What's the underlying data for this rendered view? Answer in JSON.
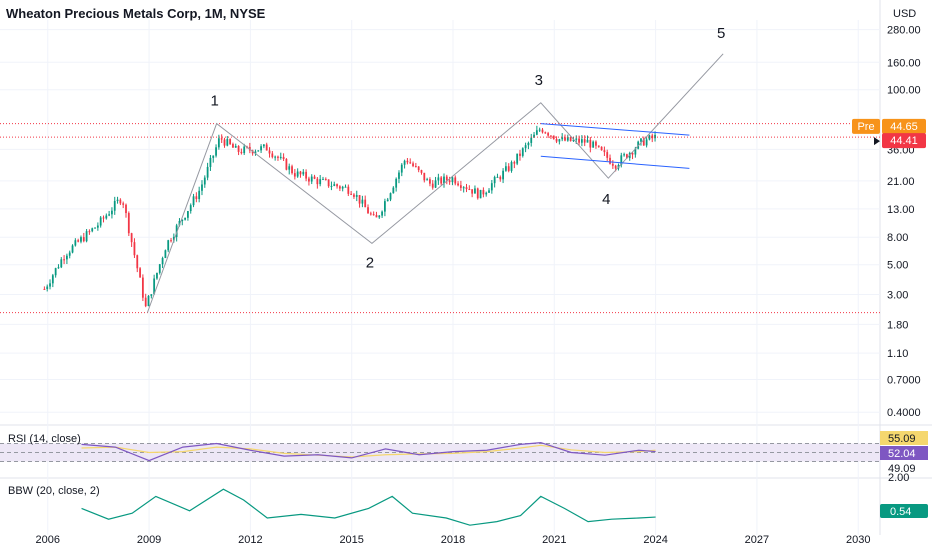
{
  "header": {
    "title": "Wheaton Precious Metals Corp, 1M, NYSE",
    "currency": "USD"
  },
  "price_axis": {
    "ticks": [
      "280.00",
      "160.00",
      "100.00",
      "36.00",
      "21.00",
      "13.00",
      "8.00",
      "5.00",
      "3.00",
      "1.80",
      "1.10",
      "0.7000",
      "0.4000"
    ],
    "pre_label": "Pre",
    "pre_value": "44.65",
    "last_value": "44.41",
    "colors": {
      "pre": "#f7931a",
      "last": "#f23645",
      "up": "#089981",
      "down": "#f23645",
      "wave": "#9598a1",
      "channel": "#2962ff"
    }
  },
  "time_axis": {
    "ticks": [
      "2006",
      "2009",
      "2012",
      "2015",
      "2018",
      "2021",
      "2024",
      "2027",
      "2030"
    ]
  },
  "rsi": {
    "label": "RSI (14, close)",
    "ticks": [
      "55.09",
      "52.04",
      "49.09"
    ],
    "colors": {
      "line": "#7e57c2",
      "ma": "#f5d76e",
      "band": "#ede7f6",
      "badge_ma": "#f5d76e",
      "badge_rsi": "#7e57c2"
    }
  },
  "bbw": {
    "label": "BBW (20, close, 2)",
    "ticks": [
      "2.00"
    ],
    "value": "0.54",
    "color": "#089981"
  },
  "chart_data": [
    {
      "type": "candlestick",
      "title": "Wheaton Precious Metals Corp, 1M, NYSE",
      "y_scale": "log",
      "currency": "USD",
      "x_range": [
        2005,
        2031
      ],
      "y_range": [
        0.35,
        330
      ],
      "series": [
        {
          "name": "price",
          "x": [
            2005.9,
            2006.5,
            2007.5,
            2008.2,
            2008.9,
            2009.5,
            2010.5,
            2011.1,
            2011.6,
            2012.5,
            2013.3,
            2014.0,
            2015.0,
            2015.7,
            2016.6,
            2017.3,
            2018.0,
            2018.8,
            2019.7,
            2020.6,
            2021.2,
            2022.0,
            2022.8,
            2023.6,
            2024.0
          ],
          "values": [
            3.3,
            6.0,
            10.0,
            16.0,
            2.4,
            7.0,
            18.0,
            44.0,
            35.0,
            37.0,
            24.0,
            21.0,
            18.0,
            10.5,
            31.0,
            20.0,
            22.0,
            16.5,
            27.0,
            52.0,
            42.0,
            41.0,
            28.0,
            41.0,
            44.41
          ]
        }
      ],
      "annotations": {
        "wave_labels": [
          "1",
          "2",
          "3",
          "4",
          "5"
        ],
        "wave_points": [
          {
            "label": "start",
            "x": 2008.95,
            "y": 2.2
          },
          {
            "label": "1",
            "x": 2011.0,
            "y": 56
          },
          {
            "label": "2",
            "x": 2015.6,
            "y": 7.2
          },
          {
            "label": "3",
            "x": 2020.6,
            "y": 80
          },
          {
            "label": "4",
            "x": 2022.6,
            "y": 22
          },
          {
            "label": "5",
            "x": 2026.0,
            "y": 185
          }
        ],
        "horizontal_levels": [
          56,
          2.2
        ],
        "channel_upper": [
          {
            "x": 2020.6,
            "y": 56
          },
          {
            "x": 2025.0,
            "y": 46
          }
        ],
        "channel_lower": [
          {
            "x": 2020.6,
            "y": 32
          },
          {
            "x": 2025.0,
            "y": 26
          }
        ],
        "pre_market": 44.65,
        "last": 44.41
      }
    },
    {
      "type": "line",
      "title": "RSI (14, close)",
      "y_range": [
        0,
        100
      ],
      "bands": [
        70,
        50,
        30
      ],
      "x": [
        2007.0,
        2008.0,
        2009.0,
        2010.0,
        2011.0,
        2012.0,
        2013.0,
        2014.0,
        2015.0,
        2016.0,
        2017.0,
        2018.0,
        2019.0,
        2020.0,
        2020.6,
        2021.5,
        2022.5,
        2023.5,
        2024.0
      ],
      "series": [
        {
          "name": "RSI",
          "values": [
            68,
            62,
            32,
            62,
            70,
            55,
            42,
            45,
            38,
            58,
            45,
            52,
            55,
            68,
            72,
            50,
            44,
            55,
            52.04
          ]
        },
        {
          "name": "MA",
          "values": [
            60,
            62,
            50,
            52,
            62,
            58,
            48,
            44,
            40,
            45,
            47,
            48,
            52,
            60,
            66,
            56,
            50,
            52,
            55.09
          ]
        }
      ]
    },
    {
      "type": "line",
      "title": "BBW (20, close, 2)",
      "x": [
        2007.0,
        2007.8,
        2008.5,
        2009.2,
        2010.2,
        2011.2,
        2011.8,
        2012.5,
        2013.5,
        2014.5,
        2015.5,
        2016.2,
        2016.8,
        2017.8,
        2018.5,
        2019.3,
        2020.0,
        2020.6,
        2021.3,
        2022.0,
        2022.7,
        2023.5,
        2024.0
      ],
      "series": [
        {
          "name": "BBW",
          "values": [
            0.9,
            0.45,
            0.7,
            1.4,
            0.8,
            1.7,
            1.25,
            0.5,
            0.65,
            0.5,
            0.9,
            1.4,
            0.7,
            0.5,
            0.2,
            0.35,
            0.6,
            1.4,
            0.9,
            0.35,
            0.45,
            0.5,
            0.54
          ]
        }
      ]
    }
  ]
}
